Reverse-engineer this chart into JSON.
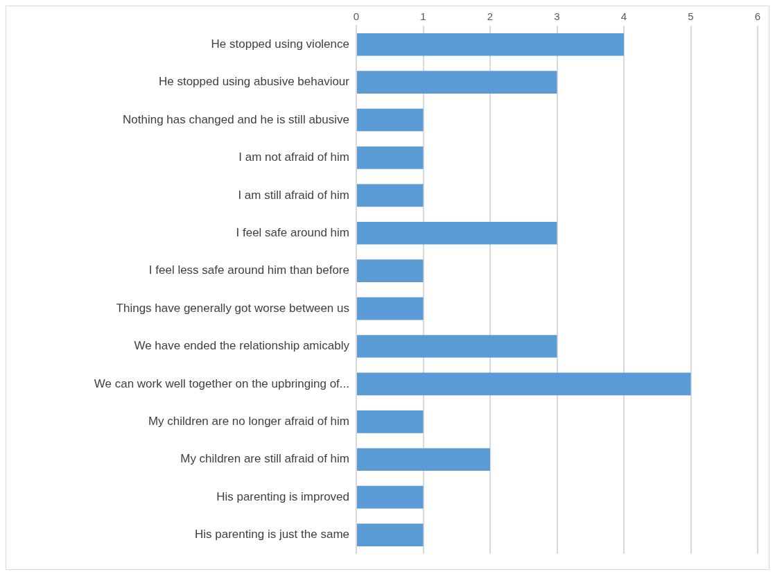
{
  "chart_data": {
    "type": "bar",
    "orientation": "horizontal",
    "categories": [
      "He stopped using violence",
      "He stopped using abusive behaviour",
      "Nothing has changed and he is still abusive",
      "I am not afraid of him",
      "I am still afraid of him",
      "I feel safe around him",
      "I feel less safe around him than before",
      "Things have generally got worse between us",
      "We have ended the relationship amicably",
      "We can work well together on the upbringing of...",
      "My children are no longer afraid of him",
      "My children are still afraid of him",
      "His parenting is improved",
      "His parenting is just the same"
    ],
    "values": [
      4,
      3,
      1,
      1,
      1,
      3,
      1,
      1,
      3,
      5,
      1,
      2,
      1,
      1
    ],
    "color": "#5b9bd5",
    "xlim": [
      0,
      6
    ],
    "xticks": [
      0,
      1,
      2,
      3,
      4,
      5,
      6
    ],
    "grid": "x",
    "legend": false
  }
}
